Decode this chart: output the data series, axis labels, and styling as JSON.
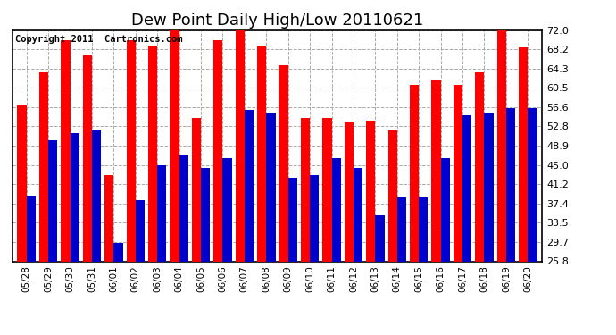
{
  "title": "Dew Point Daily High/Low 20110621",
  "copyright": "Copyright 2011  Cartronics.com",
  "dates": [
    "05/28",
    "05/29",
    "05/30",
    "05/31",
    "06/01",
    "06/02",
    "06/03",
    "06/04",
    "06/05",
    "06/06",
    "06/07",
    "06/08",
    "06/09",
    "06/10",
    "06/11",
    "06/12",
    "06/13",
    "06/14",
    "06/15",
    "06/16",
    "06/17",
    "06/18",
    "06/19",
    "06/20"
  ],
  "highs": [
    57.0,
    63.5,
    70.0,
    67.0,
    43.0,
    70.0,
    69.0,
    72.5,
    54.5,
    70.0,
    73.0,
    69.0,
    65.0,
    54.5,
    54.5,
    53.5,
    54.0,
    52.0,
    61.0,
    62.0,
    61.0,
    63.5,
    72.0,
    68.5
  ],
  "lows": [
    39.0,
    50.0,
    51.5,
    52.0,
    29.5,
    38.0,
    45.0,
    47.0,
    44.5,
    46.5,
    56.0,
    55.5,
    42.5,
    43.0,
    46.5,
    44.5,
    35.0,
    38.5,
    38.5,
    46.5,
    55.0,
    55.5,
    56.5,
    56.5
  ],
  "high_color": "#ff0000",
  "low_color": "#0000cc",
  "bg_color": "#ffffff",
  "grid_color": "#aaaaaa",
  "yticks": [
    25.8,
    29.7,
    33.5,
    37.4,
    41.2,
    45.0,
    48.9,
    52.8,
    56.6,
    60.5,
    64.3,
    68.2,
    72.0
  ],
  "ymin": 25.8,
  "ymax": 72.0,
  "title_fontsize": 13,
  "copyright_fontsize": 7.5,
  "bar_width": 0.42
}
